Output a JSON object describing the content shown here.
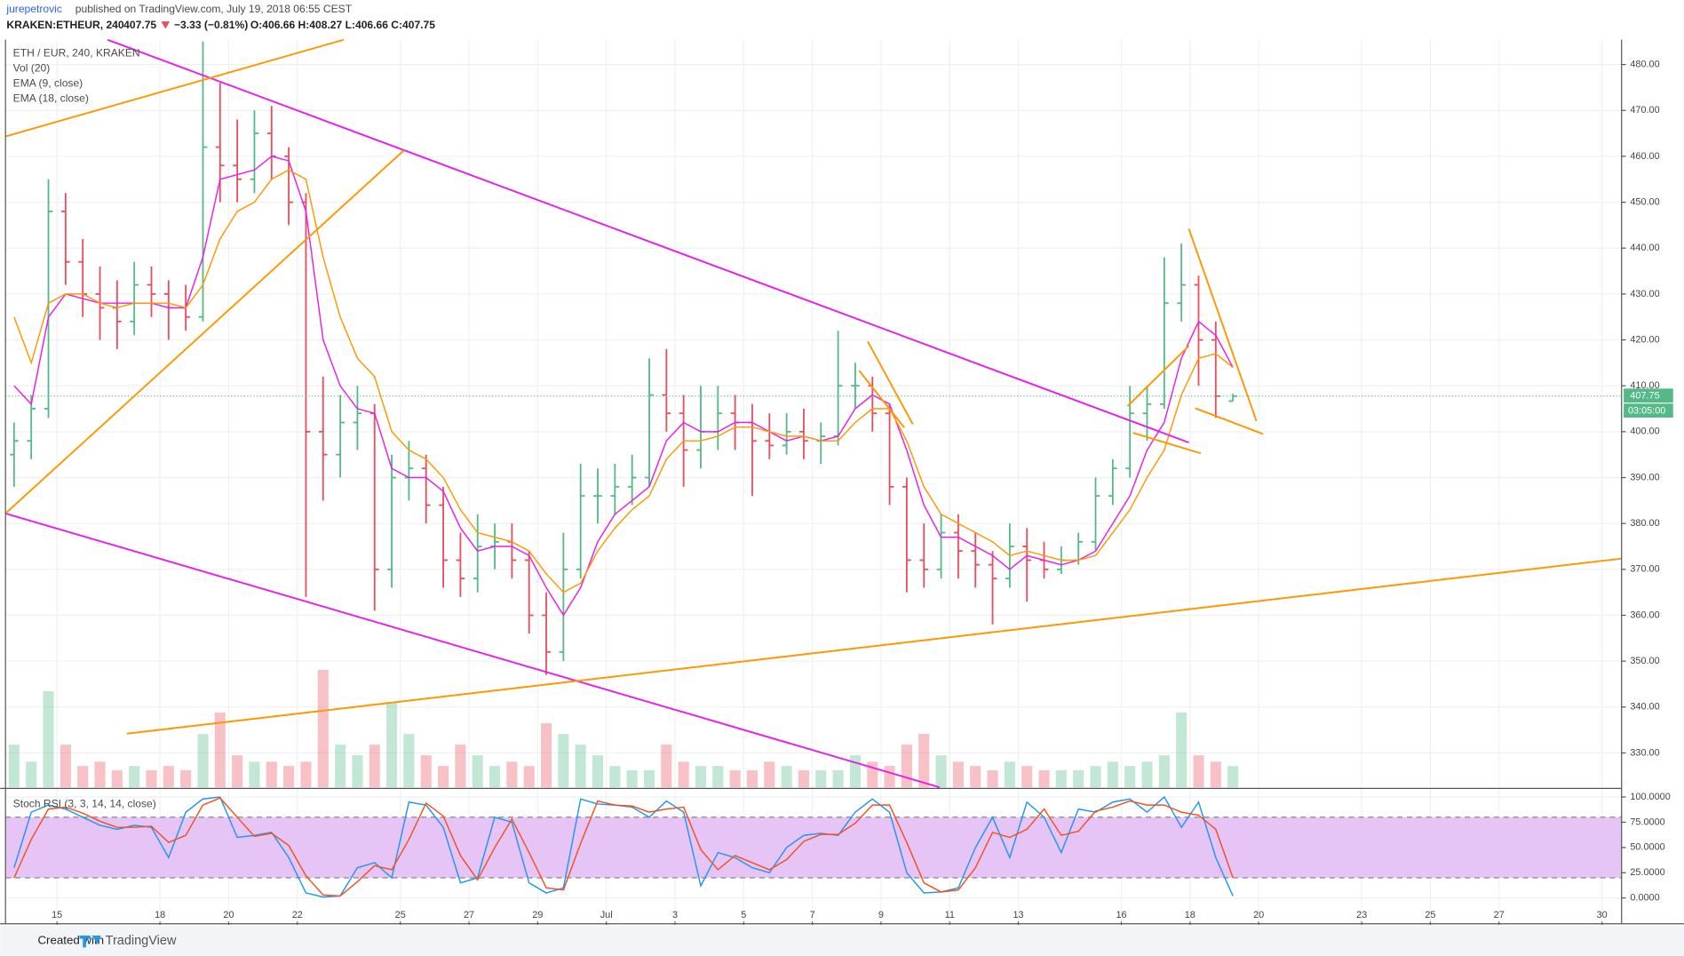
{
  "header": {
    "author": "jurepetrovic",
    "published": "published on TradingView.com, July 19, 2018 06:55 CEST",
    "symbol": "KRAKEN:ETHEUR, 240",
    "price": "407.75",
    "change": "−3.33 (−0.81%)",
    "ohlc": "O:406.66 H:408.27 L:406.66 C:407.75"
  },
  "footer": {
    "created": "Created with",
    "brand": "TradingView"
  },
  "chart_data": [
    {
      "type": "ohlc",
      "title": "ETH / EUR, 240, KRAKEN",
      "up_color": "#53b987",
      "down_color": "#eb4d5c",
      "x": [
        13.75,
        14.25,
        14.75,
        15.25,
        15.75,
        16.25,
        16.75,
        17.25,
        17.75,
        18.25,
        18.75,
        19.25,
        19.75,
        20.25,
        20.75,
        21.25,
        21.75,
        22.25,
        22.75,
        23.25,
        23.75,
        24.25,
        24.75,
        25.25,
        25.75,
        26.25,
        26.75,
        27.25,
        27.75,
        28.25,
        28.75,
        29.25,
        29.75,
        30.25,
        30.75,
        31.25,
        31.75,
        32.25,
        32.75,
        33.25,
        33.75,
        34.25,
        34.75,
        35.25,
        35.75,
        36.25,
        36.75,
        37.25,
        37.75,
        38.25,
        38.75,
        39.25,
        39.75,
        40.25,
        40.75,
        41.25,
        41.75,
        42.25,
        42.75,
        43.25,
        43.75,
        44.25,
        44.75,
        45.25,
        45.75,
        46.25,
        46.75,
        47.25,
        47.75,
        48.25,
        48.75,
        49.25
      ],
      "open": [
        395,
        398,
        405,
        448,
        437,
        430,
        427,
        424,
        432,
        430,
        427,
        425,
        462,
        458,
        455,
        465,
        460,
        450,
        400,
        395,
        402,
        404,
        370,
        390,
        392,
        384,
        372,
        368,
        375,
        376,
        372,
        360,
        352,
        370,
        386,
        386,
        388,
        390,
        408,
        404,
        396,
        400,
        404,
        402,
        398,
        397,
        400,
        398,
        399,
        410,
        410,
        404,
        388,
        372,
        370,
        378,
        374,
        371,
        368,
        375,
        372,
        370,
        372,
        376,
        386,
        392,
        404,
        406,
        428,
        432,
        420,
        406.66
      ],
      "high": [
        402,
        408,
        455,
        452,
        442,
        436,
        433,
        437,
        436,
        433,
        432,
        485,
        476,
        468,
        470,
        471,
        462,
        452,
        412,
        408,
        410,
        406,
        395,
        398,
        395,
        388,
        378,
        382,
        380,
        380,
        374,
        365,
        378,
        393,
        392,
        393,
        395,
        416,
        418,
        408,
        410,
        410,
        408,
        406,
        404,
        404,
        405,
        402,
        422,
        415,
        412,
        406,
        390,
        380,
        382,
        382,
        378,
        374,
        380,
        379,
        376,
        375,
        378,
        390,
        394,
        410,
        410,
        438,
        441,
        434,
        424,
        408.27
      ],
      "low": [
        388,
        394,
        403,
        432,
        425,
        420,
        418,
        421,
        425,
        420,
        422,
        424,
        450,
        450,
        452,
        455,
        445,
        364,
        385,
        390,
        396,
        361,
        366,
        385,
        380,
        366,
        364,
        365,
        370,
        368,
        356,
        347,
        350,
        368,
        380,
        382,
        384,
        388,
        400,
        388,
        392,
        396,
        396,
        386,
        394,
        395,
        394,
        393,
        397,
        405,
        400,
        384,
        365,
        366,
        368,
        368,
        366,
        358,
        366,
        363,
        368,
        369,
        371,
        374,
        384,
        390,
        398,
        405,
        424,
        410,
        403,
        406.66
      ],
      "close": [
        398,
        405,
        448,
        437,
        430,
        427,
        424,
        432,
        430,
        427,
        425,
        462,
        458,
        455,
        465,
        460,
        450,
        400,
        395,
        402,
        404,
        370,
        390,
        392,
        384,
        372,
        368,
        375,
        376,
        372,
        360,
        352,
        370,
        386,
        386,
        388,
        390,
        408,
        404,
        396,
        400,
        404,
        402,
        398,
        397,
        400,
        398,
        399,
        410,
        410,
        404,
        388,
        372,
        370,
        378,
        374,
        371,
        368,
        375,
        372,
        370,
        372,
        376,
        386,
        392,
        404,
        406,
        428,
        432,
        420,
        407.75,
        407.75
      ],
      "volume": {
        "name": "Vol (20)",
        "ylim": [
          0,
          350
        ],
        "values": [
          20,
          12,
          45,
          20,
          10,
          12,
          8,
          10,
          8,
          10,
          8,
          25,
          35,
          15,
          12,
          12,
          10,
          12,
          55,
          20,
          15,
          20,
          40,
          25,
          15,
          10,
          20,
          15,
          10,
          12,
          10,
          30,
          25,
          20,
          15,
          10,
          8,
          8,
          20,
          12,
          10,
          10,
          8,
          8,
          12,
          10,
          8,
          8,
          8,
          15,
          12,
          10,
          20,
          25,
          15,
          12,
          10,
          8,
          12,
          10,
          8,
          8,
          8,
          10,
          12,
          10,
          12,
          15,
          35,
          15,
          12,
          10
        ]
      },
      "series": [
        {
          "name": "EMA (9, close)",
          "color": "#e91ee9",
          "values": [
            410,
            406,
            425,
            430,
            429,
            428,
            428,
            428,
            428,
            427,
            427,
            438,
            455,
            456,
            457,
            460,
            459,
            448,
            420,
            410,
            405,
            404,
            392,
            390,
            390,
            387,
            379,
            374,
            375,
            375,
            373,
            366,
            360,
            366,
            376,
            382,
            385,
            388,
            398,
            402,
            400,
            400,
            402,
            402,
            400,
            398,
            399,
            398,
            399,
            405,
            408,
            406,
            396,
            384,
            377,
            377,
            375,
            373,
            370,
            373,
            372,
            371,
            372,
            374,
            380,
            386,
            396,
            402,
            416,
            424,
            421,
            414
          ]
        },
        {
          "name": "EMA (18, close)",
          "color": "#ff9800",
          "values": [
            425,
            415,
            428,
            430,
            430,
            428,
            427,
            428,
            428,
            428,
            427,
            432,
            442,
            448,
            450,
            455,
            457,
            455,
            438,
            425,
            416,
            412,
            400,
            396,
            394,
            390,
            383,
            378,
            377,
            376,
            374,
            369,
            365,
            367,
            374,
            379,
            383,
            386,
            394,
            398,
            398,
            399,
            401,
            401,
            400,
            399,
            399,
            398,
            398,
            402,
            405,
            405,
            398,
            388,
            382,
            380,
            378,
            376,
            373,
            374,
            373,
            372,
            372,
            373,
            378,
            383,
            390,
            396,
            408,
            416,
            417,
            414
          ]
        }
      ],
      "xlim": [
        13.5,
        60.57
      ],
      "xticks": [
        15,
        18,
        20,
        22,
        25,
        27,
        29,
        {
          "value": 31,
          "label": "Jul"
        },
        {
          "value": 33,
          "label": "3"
        },
        {
          "value": 35,
          "label": "5"
        },
        {
          "value": 37,
          "label": "7"
        },
        {
          "value": 39,
          "label": "9"
        },
        {
          "value": 41,
          "label": "11"
        },
        {
          "value": 43,
          "label": "13"
        },
        {
          "value": 46,
          "label": "16"
        },
        {
          "value": 48,
          "label": "18"
        },
        {
          "value": 50,
          "label": "20"
        },
        {
          "value": 53,
          "label": "23"
        },
        {
          "value": 55,
          "label": "25"
        },
        {
          "value": 57,
          "label": "27"
        },
        {
          "value": 60,
          "label": "30"
        }
      ],
      "ylim": [
        322.5,
        485.4
      ],
      "yticks": [
        {
          "value": 330,
          "label": "330.00"
        },
        {
          "value": 340,
          "label": "340.00"
        },
        {
          "value": 350,
          "label": "350.00"
        },
        {
          "value": 360,
          "label": "360.00"
        },
        {
          "value": 370,
          "label": "370.00"
        },
        {
          "value": 380,
          "label": "380.00"
        },
        {
          "value": 390,
          "label": "390.00"
        },
        {
          "value": 400,
          "label": "400.00"
        },
        {
          "value": 410,
          "label": "410.00"
        },
        {
          "value": 420,
          "label": "420.00"
        },
        {
          "value": 430,
          "label": "430.00"
        },
        {
          "value": 440,
          "label": "440.00"
        },
        {
          "value": 450,
          "label": "450.00"
        },
        {
          "value": 460,
          "label": "460.00"
        },
        {
          "value": 470,
          "label": "470.00"
        },
        {
          "value": 480,
          "label": "480.00"
        }
      ],
      "grid": true,
      "countdown": "03:05:00"
    },
    {
      "type": "line",
      "title": "Stoch RSI (3, 3, 14, 14, close)",
      "band": [
        20,
        80
      ],
      "band_color": "#e6c4f5",
      "x": [
        13.75,
        14.25,
        14.75,
        15.25,
        15.75,
        16.25,
        16.75,
        17.25,
        17.75,
        18.25,
        18.75,
        19.25,
        19.75,
        20.25,
        20.75,
        21.25,
        21.75,
        22.25,
        22.75,
        23.25,
        23.75,
        24.25,
        24.75,
        25.25,
        25.75,
        26.25,
        26.75,
        27.25,
        27.75,
        28.25,
        28.75,
        29.25,
        29.75,
        30.25,
        30.75,
        31.25,
        31.75,
        32.25,
        32.75,
        33.25,
        33.75,
        34.25,
        34.75,
        35.25,
        35.75,
        36.25,
        36.75,
        37.25,
        37.75,
        38.25,
        38.75,
        39.25,
        39.75,
        40.25,
        40.75,
        41.25,
        41.75,
        42.25,
        42.75,
        43.25,
        43.75,
        44.25,
        44.75,
        45.25,
        45.75,
        46.25,
        46.75,
        47.25,
        47.75,
        48.25,
        48.75,
        49.25
      ],
      "series": [
        {
          "color": "#2196f3",
          "values": [
            30,
            85,
            92,
            88,
            80,
            72,
            68,
            72,
            70,
            40,
            85,
            98,
            100,
            60,
            62,
            65,
            40,
            5,
            1,
            2,
            30,
            35,
            20,
            95,
            92,
            70,
            15,
            20,
            80,
            75,
            15,
            5,
            10,
            98,
            93,
            92,
            90,
            80,
            96,
            85,
            12,
            45,
            40,
            30,
            25,
            50,
            62,
            64,
            62,
            85,
            98,
            85,
            25,
            5,
            6,
            10,
            50,
            80,
            40,
            95,
            80,
            45,
            88,
            85,
            95,
            98,
            85,
            100,
            70,
            95,
            40,
            2
          ]
        },
        {
          "color": "#f4511e",
          "values": [
            20,
            58,
            88,
            90,
            84,
            76,
            70,
            70,
            71,
            55,
            62,
            92,
            99,
            80,
            61,
            64,
            52,
            22,
            3,
            2,
            16,
            32,
            28,
            58,
            94,
            81,
            42,
            18,
            50,
            78,
            45,
            10,
            8,
            54,
            96,
            92,
            91,
            85,
            88,
            90,
            48,
            28,
            42,
            35,
            28,
            38,
            56,
            63,
            63,
            74,
            92,
            92,
            55,
            15,
            6,
            8,
            30,
            65,
            60,
            68,
            88,
            62,
            66,
            86,
            90,
            96,
            92,
            92,
            85,
            82,
            68,
            20
          ]
        }
      ],
      "xlim": [
        13.5,
        60.57
      ],
      "ylim": [
        -23.4,
        107.4
      ],
      "yticks": [
        {
          "value": 0,
          "label": "0.0000"
        },
        {
          "value": 25,
          "label": "25.0000"
        },
        {
          "value": 50,
          "label": "50.0000"
        },
        {
          "value": 75,
          "label": "75.0000"
        },
        {
          "value": 100,
          "label": "100.0000"
        }
      ]
    }
  ]
}
